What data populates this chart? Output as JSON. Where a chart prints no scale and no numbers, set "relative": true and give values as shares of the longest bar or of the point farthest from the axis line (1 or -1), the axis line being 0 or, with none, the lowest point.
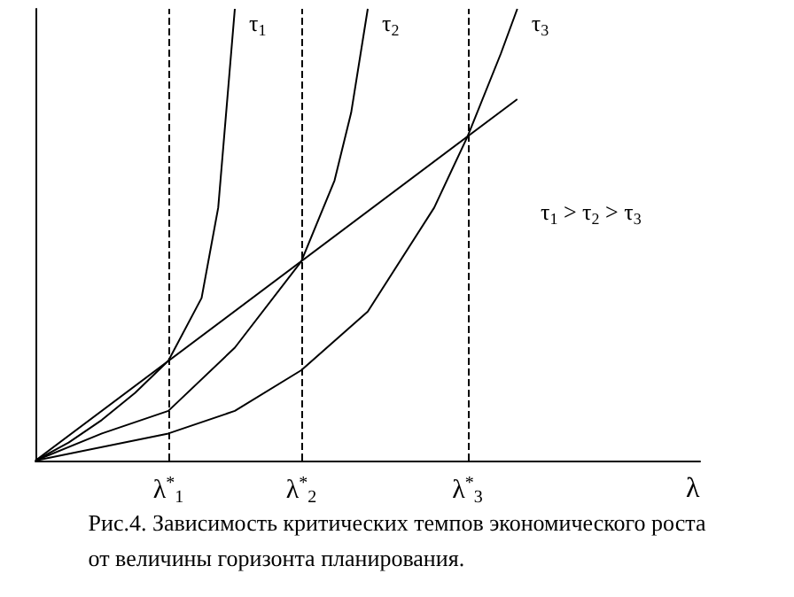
{
  "chart_data": {
    "type": "line",
    "relative": true,
    "xlabel": "λ",
    "marker": "none",
    "line_style": "solid",
    "categories": [
      null,
      null,
      null,
      null,
      null,
      null,
      null,
      null,
      "λ$^{*}$$_{1}$",
      null,
      null,
      null,
      null,
      null,
      null,
      null,
      "λ$^{*}$$_{2}$",
      null,
      null,
      null,
      null,
      null,
      null,
      null,
      null,
      null,
      "λ$^{*}$$_{3}$",
      null,
      null,
      null,
      null,
      null,
      null,
      null,
      null,
      null,
      null,
      null,
      null,
      null,
      null
    ],
    "ref_lines": [
      {
        "axis": "x",
        "value": "λ$^{*}$$_{1}$",
        "line_style": "dashed",
        "color": "#000000"
      },
      {
        "axis": "x",
        "value": "λ$^{*}$$_{2}$",
        "line_style": "dashed",
        "color": "#000000"
      },
      {
        "axis": "x",
        "value": "λ$^{*}$$_{3}$",
        "line_style": "dashed",
        "color": "#000000"
      }
    ],
    "series": [
      {
        "color": "#000000",
        "values": [
          0,
          null,
          null,
          null,
          null,
          null,
          null,
          null,
          null,
          null,
          null,
          null,
          null,
          null,
          null,
          null,
          null,
          null,
          null,
          null,
          null,
          null,
          null,
          null,
          null,
          null,
          null,
          null,
          null,
          0.8,
          null,
          null,
          null,
          null,
          null,
          null,
          null,
          null,
          null,
          null,
          null
        ]
      },
      {
        "name": "τ$_{1}$",
        "color": "#000000",
        "values": [
          0,
          null,
          0.04,
          null,
          0.09,
          null,
          0.15,
          null,
          0.221,
          null,
          0.36,
          0.56,
          1,
          null,
          null,
          null,
          null,
          null,
          null,
          null,
          null,
          null,
          null,
          null,
          null,
          null,
          null,
          null,
          null,
          null,
          null,
          null,
          null,
          null,
          null,
          null,
          null,
          null,
          null,
          null,
          null
        ]
      },
      {
        "name": "τ$_{2}$",
        "color": "#000000",
        "values": [
          0,
          null,
          null,
          null,
          0.06,
          null,
          null,
          null,
          0.11,
          null,
          null,
          null,
          0.25,
          null,
          null,
          null,
          0.441,
          null,
          0.62,
          0.77,
          1,
          null,
          null,
          null,
          null,
          null,
          null,
          null,
          null,
          null,
          null,
          null,
          null,
          null,
          null,
          null,
          null,
          null,
          null,
          null,
          null
        ]
      },
      {
        "name": "τ$_{3}$",
        "color": "#000000",
        "values": [
          0,
          null,
          null,
          null,
          null,
          null,
          null,
          null,
          0.06,
          null,
          null,
          null,
          0.11,
          null,
          null,
          null,
          0.2,
          null,
          null,
          null,
          0.33,
          null,
          null,
          null,
          0.56,
          null,
          0.717,
          null,
          0.9,
          1,
          null,
          null,
          null,
          null,
          null,
          null,
          null,
          null,
          null,
          null,
          null
        ]
      }
    ],
    "annotations": [
      "τ$_{1}$ > τ$_{2}$ > τ$_{3}$",
      "Рис.4. Зависимость критических темпов экономического роста\nот величины горизонта планирования."
    ]
  }
}
